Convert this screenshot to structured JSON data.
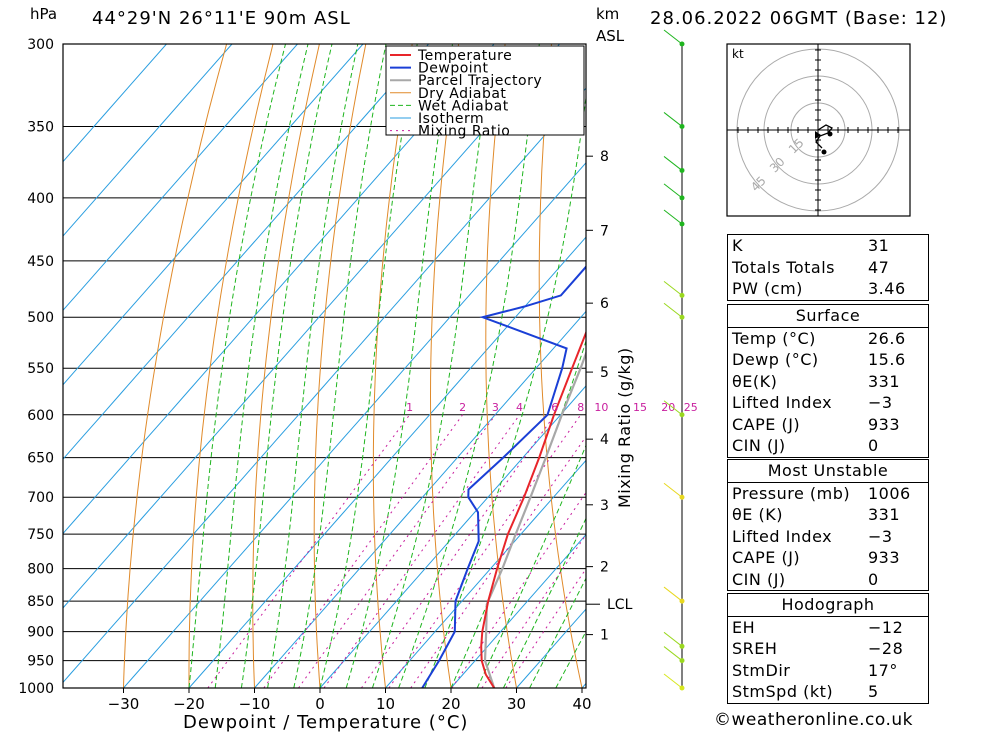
{
  "header": {
    "title": "44°29'N 26°11'E 90m ASL",
    "date": "28.06.2022 06GMT (Base: 12)",
    "hpa_label": "hPa",
    "km_label": "km",
    "asl_label": "ASL"
  },
  "footer": {
    "credit": "©weatheronline.co.uk"
  },
  "hodograph": {
    "unit_label": "kt",
    "ring_labels": [
      "15",
      "30",
      "45"
    ]
  },
  "chart_data": {
    "type": "line",
    "xlabel": "Dewpoint / Temperature (°C)",
    "ylabel_right": "Mixing Ratio (g/kg)",
    "x_ticks": [
      -30,
      -20,
      -10,
      0,
      10,
      20,
      30,
      40
    ],
    "pressure_levels": [
      300,
      350,
      400,
      450,
      500,
      550,
      600,
      650,
      700,
      750,
      800,
      850,
      900,
      950,
      1000
    ],
    "km_ticks": [
      {
        "label": "1",
        "p": 905
      },
      {
        "label": "2",
        "p": 797
      },
      {
        "label": "3",
        "p": 710
      },
      {
        "label": "4",
        "p": 628
      },
      {
        "label": "5",
        "p": 554
      },
      {
        "label": "6",
        "p": 487
      },
      {
        "label": "7",
        "p": 425
      },
      {
        "label": "8",
        "p": 370
      }
    ],
    "lcl": {
      "label": "LCL",
      "p": 855
    },
    "mixing_ratio_labels": [
      "1",
      "2",
      "3",
      "4",
      "6",
      "8",
      "10",
      "15",
      "20",
      "25"
    ],
    "mixing_ratio_values": [
      1,
      2,
      3,
      4,
      6,
      8,
      10,
      15,
      20,
      25
    ],
    "legend": [
      "Temperature",
      "Dewpoint",
      "Parcel Trajectory",
      "Dry Adiabat",
      "Wet Adiabat",
      "Isotherm",
      "Mixing Ratio"
    ],
    "colors": {
      "temperature": "#e8252a",
      "dewpoint": "#1a3fd6",
      "parcel": "#a8a8a8",
      "dry_adiabat": "#e08a2a",
      "wet_adiabat": "#1fb51f",
      "isotherm": "#2a9ee0",
      "mixing_ratio": "#c81e9e"
    },
    "temperature": [
      {
        "p": 1000,
        "t": 26.6
      },
      {
        "p": 975,
        "t": 23.5
      },
      {
        "p": 950,
        "t": 21.0
      },
      {
        "p": 925,
        "t": 19.0
      },
      {
        "p": 900,
        "t": 17.2
      },
      {
        "p": 850,
        "t": 14.0
      },
      {
        "p": 800,
        "t": 11.0
      },
      {
        "p": 750,
        "t": 8.0
      },
      {
        "p": 700,
        "t": 5.5
      },
      {
        "p": 650,
        "t": 2.5
      },
      {
        "p": 600,
        "t": -1.0
      },
      {
        "p": 550,
        "t": -4.5
      },
      {
        "p": 510,
        "t": -7.5
      },
      {
        "p": 500,
        "t": -8.5
      },
      {
        "p": 490,
        "t": -8.5
      },
      {
        "p": 450,
        "t": -13.0
      },
      {
        "p": 400,
        "t": -19.0
      },
      {
        "p": 350,
        "t": -26.5
      },
      {
        "p": 300,
        "t": -35.0
      }
    ],
    "dewpoint": [
      {
        "p": 1000,
        "t": 15.6
      },
      {
        "p": 950,
        "t": 14.5
      },
      {
        "p": 900,
        "t": 13.0
      },
      {
        "p": 850,
        "t": 9.0
      },
      {
        "p": 800,
        "t": 6.5
      },
      {
        "p": 760,
        "t": 4.5
      },
      {
        "p": 720,
        "t": 0.5
      },
      {
        "p": 700,
        "t": -3.0
      },
      {
        "p": 690,
        "t": -4.0
      },
      {
        "p": 650,
        "t": -3.0
      },
      {
        "p": 600,
        "t": -2.0
      },
      {
        "p": 550,
        "t": -6.0
      },
      {
        "p": 530,
        "t": -8.0
      },
      {
        "p": 500,
        "t": -25.0
      },
      {
        "p": 490,
        "t": -20.0
      },
      {
        "p": 480,
        "t": -16.0
      },
      {
        "p": 450,
        "t": -16.0
      },
      {
        "p": 400,
        "t": -24.0
      },
      {
        "p": 350,
        "t": -33.0
      },
      {
        "p": 300,
        "t": -45.0
      }
    ],
    "parcel": [
      {
        "p": 1000,
        "t": 26.6
      },
      {
        "p": 950,
        "t": 21.5
      },
      {
        "p": 900,
        "t": 17.8
      },
      {
        "p": 855,
        "t": 14.2
      },
      {
        "p": 800,
        "t": 11.8
      },
      {
        "p": 750,
        "t": 9.2
      },
      {
        "p": 700,
        "t": 6.5
      },
      {
        "p": 650,
        "t": 3.5
      },
      {
        "p": 600,
        "t": 0.2
      },
      {
        "p": 550,
        "t": -3.2
      },
      {
        "p": 500,
        "t": -7.2
      },
      {
        "p": 450,
        "t": -11.5
      },
      {
        "p": 400,
        "t": -16.8
      },
      {
        "p": 350,
        "t": -23.0
      },
      {
        "p": 300,
        "t": -31.0
      }
    ]
  },
  "indices": {
    "top": [
      {
        "label": "K",
        "value": "31"
      },
      {
        "label": "Totals Totals",
        "value": "47"
      },
      {
        "label": "PW (cm)",
        "value": "3.46"
      }
    ],
    "surface": {
      "title": "Surface",
      "rows": [
        {
          "label": "Temp (°C)",
          "value": "26.6"
        },
        {
          "label": "Dewp (°C)",
          "value": "15.6"
        },
        {
          "label": "θE(K)",
          "value": "331"
        },
        {
          "label": "Lifted Index",
          "value": "−3"
        },
        {
          "label": "CAPE (J)",
          "value": "933"
        },
        {
          "label": "CIN (J)",
          "value": "0"
        }
      ]
    },
    "most_unstable": {
      "title": "Most Unstable",
      "rows": [
        {
          "label": "Pressure (mb)",
          "value": "1006"
        },
        {
          "label": "θE (K)",
          "value": "331"
        },
        {
          "label": "Lifted Index",
          "value": "−3"
        },
        {
          "label": "CAPE (J)",
          "value": "933"
        },
        {
          "label": "CIN (J)",
          "value": "0"
        }
      ]
    },
    "hodograph": {
      "title": "Hodograph",
      "rows": [
        {
          "label": "EH",
          "value": "−12"
        },
        {
          "label": "SREH",
          "value": "−28"
        },
        {
          "label": "StmDir",
          "value": "17°"
        },
        {
          "label": "StmSpd (kt)",
          "value": "5"
        }
      ]
    }
  }
}
